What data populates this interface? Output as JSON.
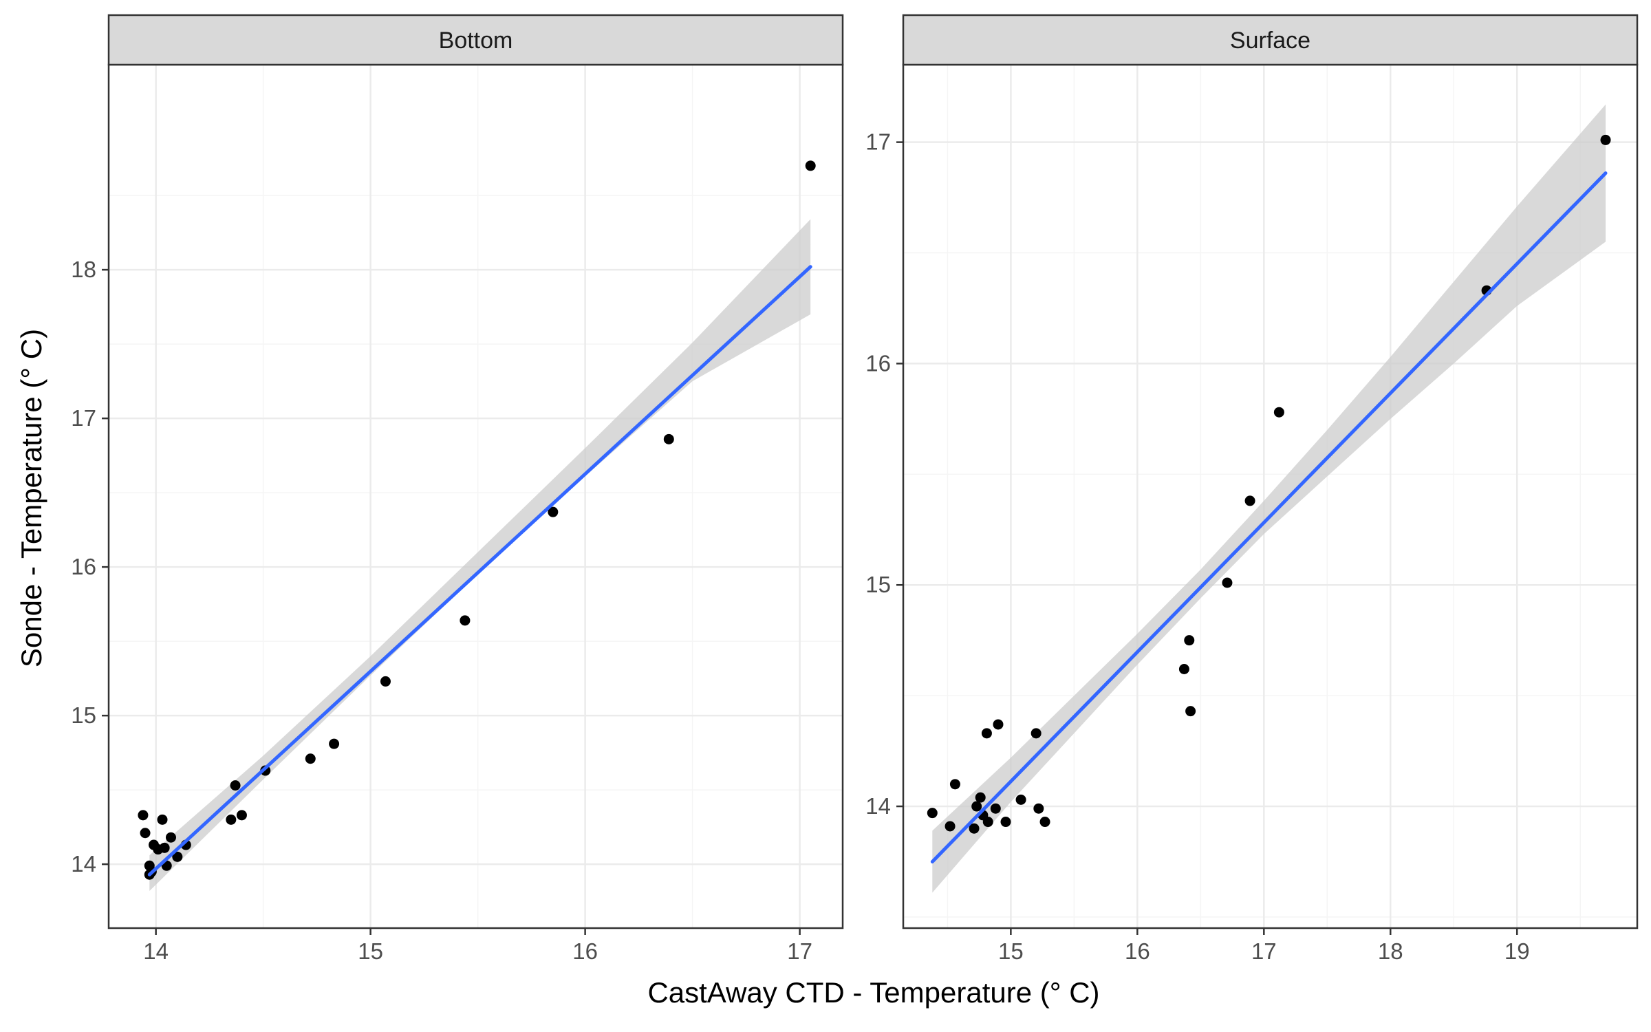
{
  "chart_data": {
    "type": "scatter",
    "xlabel": "CastAway CTD - Temperature (° C)",
    "ylabel": "Sonde - Temperature (° C)",
    "facets": [
      {
        "label": "Bottom",
        "xlim": [
          13.78,
          17.2
        ],
        "ylim": [
          13.57,
          19.38
        ],
        "x_ticks": [
          14,
          15,
          16,
          17
        ],
        "y_ticks": [
          14,
          15,
          16,
          17,
          18
        ],
        "points": [
          {
            "x": 13.94,
            "y": 14.33
          },
          {
            "x": 13.95,
            "y": 14.21
          },
          {
            "x": 13.97,
            "y": 13.99
          },
          {
            "x": 13.97,
            "y": 13.93
          },
          {
            "x": 13.98,
            "y": 13.95
          },
          {
            "x": 13.99,
            "y": 14.13
          },
          {
            "x": 14.01,
            "y": 14.1
          },
          {
            "x": 14.03,
            "y": 14.3
          },
          {
            "x": 14.04,
            "y": 14.11
          },
          {
            "x": 14.05,
            "y": 13.99
          },
          {
            "x": 14.07,
            "y": 14.18
          },
          {
            "x": 14.1,
            "y": 14.05
          },
          {
            "x": 14.14,
            "y": 14.13
          },
          {
            "x": 14.35,
            "y": 14.3
          },
          {
            "x": 14.37,
            "y": 14.53
          },
          {
            "x": 14.4,
            "y": 14.33
          },
          {
            "x": 14.51,
            "y": 14.63
          },
          {
            "x": 14.72,
            "y": 14.71
          },
          {
            "x": 14.83,
            "y": 14.81
          },
          {
            "x": 15.07,
            "y": 15.23
          },
          {
            "x": 15.44,
            "y": 15.64
          },
          {
            "x": 15.85,
            "y": 16.37
          },
          {
            "x": 16.39,
            "y": 16.86
          },
          {
            "x": 17.05,
            "y": 18.7
          }
        ],
        "fit": {
          "x": [
            13.97,
            17.05
          ],
          "y": [
            13.93,
            18.02
          ]
        },
        "ci_lower": [
          [
            13.97,
            13.82
          ],
          [
            14.5,
            14.57
          ],
          [
            15.0,
            15.27
          ],
          [
            15.5,
            15.95
          ],
          [
            16.0,
            16.61
          ],
          [
            16.5,
            17.25
          ],
          [
            17.05,
            17.7
          ]
        ],
        "ci_upper": [
          [
            13.97,
            14.06
          ],
          [
            14.5,
            14.73
          ],
          [
            15.0,
            15.4
          ],
          [
            15.5,
            16.1
          ],
          [
            16.0,
            16.8
          ],
          [
            16.5,
            17.51
          ],
          [
            17.05,
            18.34
          ]
        ]
      },
      {
        "label": "Surface",
        "xlim": [
          14.15,
          19.95
        ],
        "ylim": [
          13.45,
          17.35
        ],
        "x_ticks": [
          15,
          16,
          17,
          18,
          19
        ],
        "y_ticks": [
          14,
          15,
          16,
          17
        ],
        "points": [
          {
            "x": 14.38,
            "y": 13.97
          },
          {
            "x": 14.52,
            "y": 13.91
          },
          {
            "x": 14.56,
            "y": 14.1
          },
          {
            "x": 14.71,
            "y": 13.9
          },
          {
            "x": 14.73,
            "y": 14.0
          },
          {
            "x": 14.76,
            "y": 14.04
          },
          {
            "x": 14.78,
            "y": 13.96
          },
          {
            "x": 14.81,
            "y": 14.33
          },
          {
            "x": 14.82,
            "y": 13.93
          },
          {
            "x": 14.88,
            "y": 13.99
          },
          {
            "x": 14.9,
            "y": 14.37
          },
          {
            "x": 14.96,
            "y": 13.93
          },
          {
            "x": 15.08,
            "y": 14.03
          },
          {
            "x": 15.2,
            "y": 14.33
          },
          {
            "x": 15.22,
            "y": 13.99
          },
          {
            "x": 15.27,
            "y": 13.93
          },
          {
            "x": 16.37,
            "y": 14.62
          },
          {
            "x": 16.41,
            "y": 14.75
          },
          {
            "x": 16.42,
            "y": 14.43
          },
          {
            "x": 16.71,
            "y": 15.01
          },
          {
            "x": 16.89,
            "y": 15.38
          },
          {
            "x": 17.12,
            "y": 15.78
          },
          {
            "x": 18.76,
            "y": 16.33
          },
          {
            "x": 19.7,
            "y": 17.01
          }
        ],
        "fit": {
          "x": [
            14.38,
            19.7
          ],
          "y": [
            13.75,
            16.86
          ]
        },
        "ci_lower": [
          [
            14.38,
            13.61
          ],
          [
            15.0,
            14.02
          ],
          [
            15.5,
            14.33
          ],
          [
            16.0,
            14.64
          ],
          [
            16.5,
            14.94
          ],
          [
            17.0,
            15.23
          ],
          [
            17.5,
            15.49
          ],
          [
            18.0,
            15.75
          ],
          [
            18.5,
            16.0
          ],
          [
            19.0,
            16.26
          ],
          [
            19.7,
            16.55
          ]
        ],
        "ci_upper": [
          [
            14.38,
            13.89
          ],
          [
            15.0,
            14.22
          ],
          [
            15.5,
            14.5
          ],
          [
            16.0,
            14.78
          ],
          [
            16.5,
            15.07
          ],
          [
            17.0,
            15.38
          ],
          [
            17.5,
            15.7
          ],
          [
            18.0,
            16.03
          ],
          [
            18.5,
            16.37
          ],
          [
            19.0,
            16.71
          ],
          [
            19.7,
            17.17
          ]
        ]
      }
    ],
    "colors": {
      "point": "#000000",
      "fit_line": "#3366ff",
      "ci_band": "#cccccc",
      "grid_major": "#ebebeb",
      "grid_minor": "#f5f5f5",
      "strip_fill": "#d9d9d9",
      "panel_border": "#333333"
    }
  }
}
